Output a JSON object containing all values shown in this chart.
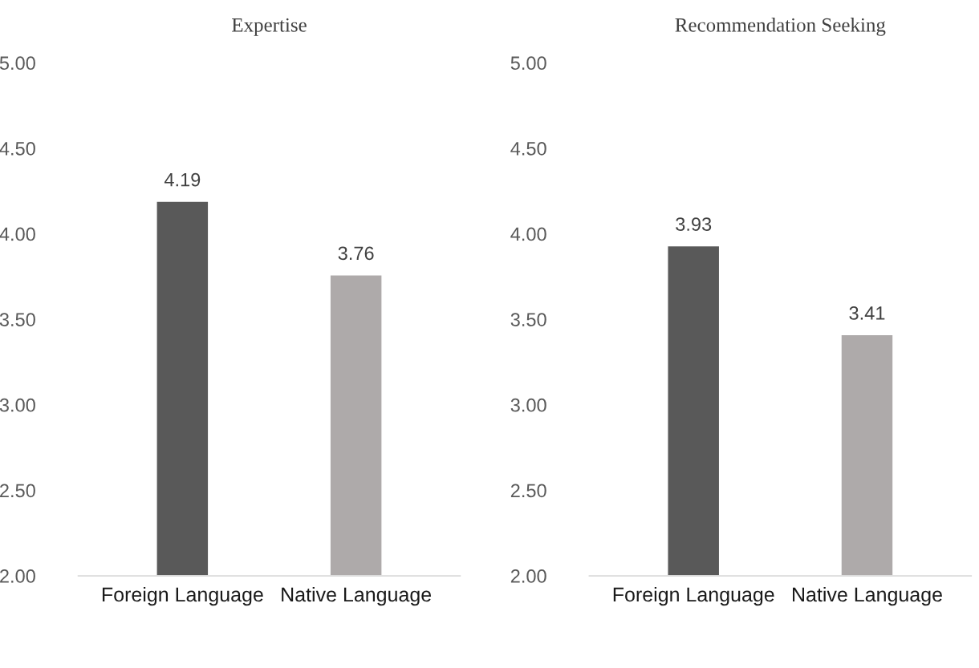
{
  "chart_data": [
    {
      "type": "bar",
      "title": "Expertise",
      "categories": [
        "Foreign Language",
        "Native Language"
      ],
      "values": [
        4.19,
        3.76
      ],
      "colors": [
        "#595959",
        "#aeaaaa"
      ],
      "ylim": [
        2,
        5
      ],
      "yticks": [
        {
          "value": 2,
          "label": "2.00"
        },
        {
          "value": 2.5,
          "label": "2.50"
        },
        {
          "value": 3,
          "label": "3.00"
        },
        {
          "value": 3.5,
          "label": "3.50"
        },
        {
          "value": 4,
          "label": "4.00"
        },
        {
          "value": 4.5,
          "label": "4.50"
        },
        {
          "value": 5,
          "label": "5.00"
        }
      ],
      "data_labels": true,
      "grid": false,
      "legend": false
    },
    {
      "type": "bar",
      "title": "Recommendation Seeking",
      "categories": [
        "Foreign Language",
        "Native Language"
      ],
      "values": [
        3.93,
        3.41
      ],
      "colors": [
        "#595959",
        "#aeaaaa"
      ],
      "ylim": [
        2,
        5
      ],
      "yticks": [
        {
          "value": 2,
          "label": "2.00"
        },
        {
          "value": 2.5,
          "label": "2.50"
        },
        {
          "value": 3,
          "label": "3.00"
        },
        {
          "value": 3.5,
          "label": "3.50"
        },
        {
          "value": 4,
          "label": "4.00"
        },
        {
          "value": 4.5,
          "label": "4.50"
        },
        {
          "value": 5,
          "label": "5.00"
        }
      ],
      "data_labels": true,
      "grid": false,
      "legend": false
    }
  ]
}
